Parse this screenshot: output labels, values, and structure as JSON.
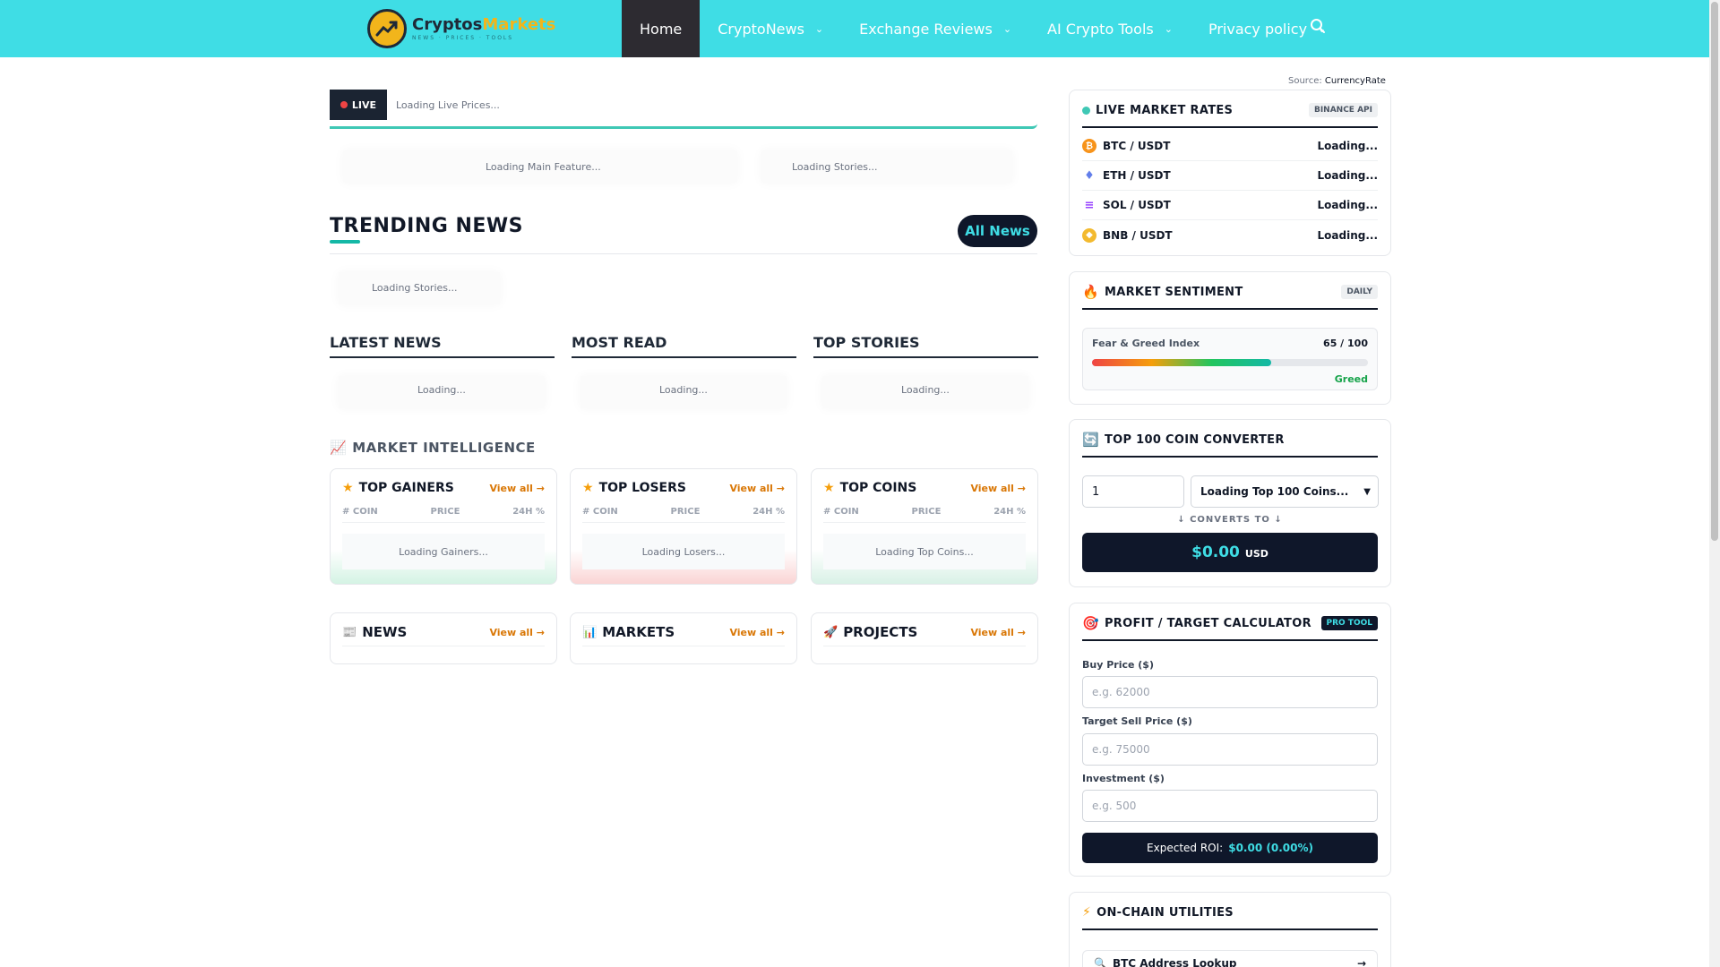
{
  "nav": {
    "logo_name_part1": "Cryptos",
    "logo_name_part2": "Markets",
    "logo_tagline": "NEWS · PRICES · TOOLS",
    "items": [
      {
        "label": "Home",
        "active": true
      },
      {
        "label": "CryptoNews",
        "dropdown": true
      },
      {
        "label": "Exchange Reviews",
        "dropdown": true
      },
      {
        "label": "AI Crypto Tools",
        "dropdown": true
      },
      {
        "label": "Privacy policy",
        "dropdown": true
      }
    ],
    "search_icon": "search-icon"
  },
  "ticker": {
    "badge": "LIVE",
    "text": "Loading Live Prices..."
  },
  "feature": {
    "main": "Loading Main Feature...",
    "stories": "Loading Stories..."
  },
  "trending": {
    "title": "TRENDING NEWS",
    "button": "All News",
    "loading": "Loading Stories..."
  },
  "columns": [
    {
      "title": "LATEST NEWS",
      "loading": "Loading..."
    },
    {
      "title": "MOST READ",
      "loading": "Loading..."
    },
    {
      "title": "TOP STORIES",
      "loading": "Loading..."
    }
  ],
  "market_intel": {
    "title": "MARKET INTELLIGENCE",
    "icon": "chart-up-icon",
    "view_all": "View all →",
    "col_coin": "# COIN",
    "col_price": "PRICE",
    "col_change": "24H %",
    "cards": [
      {
        "title": "TOP GAINERS",
        "loading": "Loading Gainers..."
      },
      {
        "title": "TOP LOSERS",
        "loading": "Loading Losers..."
      },
      {
        "title": "TOP COINS",
        "loading": "Loading Top Coins..."
      }
    ]
  },
  "sections": [
    {
      "title": "NEWS",
      "icon": "newspaper-icon"
    },
    {
      "title": "MARKETS",
      "icon": "bar-chart-icon"
    },
    {
      "title": "PROJECTS",
      "icon": "rocket-icon"
    }
  ],
  "sidebar": {
    "source_label": "Source:",
    "source_name": "CurrencyRate",
    "live_rates": {
      "title": "LIVE MARKET RATES",
      "badge": "BINANCE API",
      "rows": [
        {
          "pair": "BTC / USDT",
          "value": "Loading...",
          "color": "#f7931a",
          "glyph": "₿"
        },
        {
          "pair": "ETH / USDT",
          "value": "Loading...",
          "color": "#627eea",
          "glyph": "♦"
        },
        {
          "pair": "SOL / USDT",
          "value": "Loading...",
          "color": "#14b8a6",
          "glyph": "≡"
        },
        {
          "pair": "BNB / USDT",
          "value": "Loading...",
          "color": "#f3ba2f",
          "glyph": "◆"
        }
      ]
    },
    "sentiment": {
      "title": "MARKET SENTIMENT",
      "badge": "DAILY",
      "index_label": "Fear & Greed Index",
      "index_value": "65 / 100",
      "index_fraction": 0.65,
      "state": "Greed"
    },
    "converter": {
      "title": "TOP 100 COIN CONVERTER",
      "amount": "1",
      "select": "Loading Top 100 Coins...",
      "converts_to": "↓ CONVERTS TO ↓",
      "result": "$0.00",
      "currency": "USD"
    },
    "calculator": {
      "title": "PROFIT / TARGET CALCULATOR",
      "badge": "PRO TOOL",
      "buy_label": "Buy Price ($)",
      "buy_placeholder": "e.g. 62000",
      "sell_label": "Target Sell Price ($)",
      "sell_placeholder": "e.g. 75000",
      "invest_label": "Investment ($)",
      "invest_placeholder": "e.g. 500",
      "roi_label": "Expected ROI:",
      "roi_value": "$0.00 (0.00%)"
    },
    "utilities": {
      "title": "ON-CHAIN UTILITIES",
      "item": "BTC Address Lookup"
    }
  }
}
